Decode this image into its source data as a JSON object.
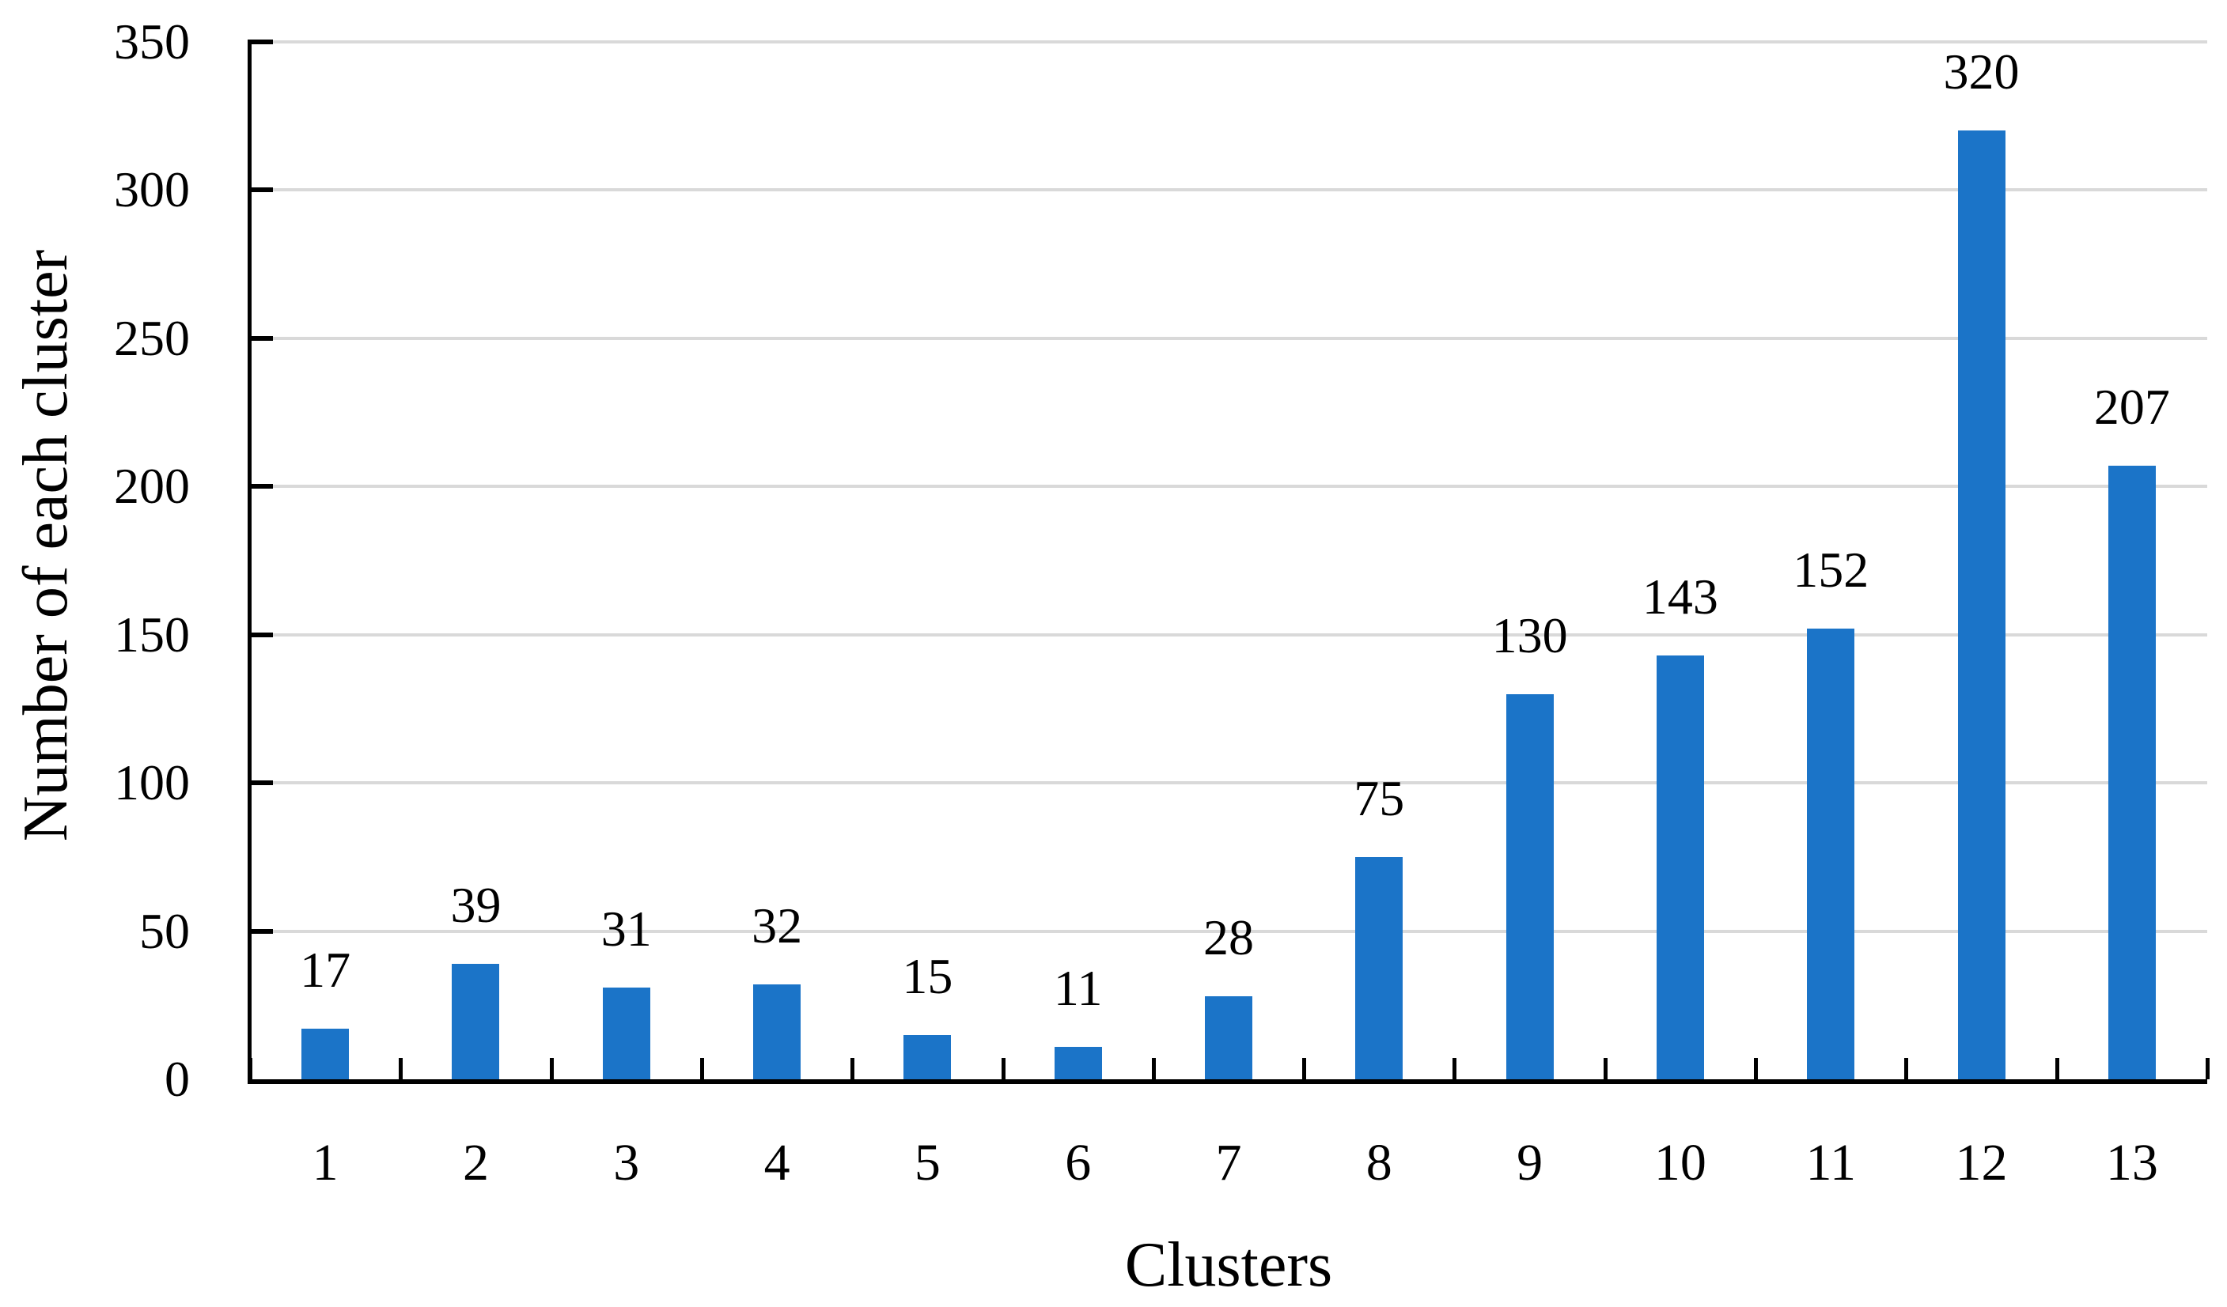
{
  "chart_data": {
    "type": "bar",
    "title": "",
    "xlabel": "Clusters",
    "ylabel": "Number of each cluster",
    "categories": [
      "1",
      "2",
      "3",
      "4",
      "5",
      "6",
      "7",
      "8",
      "9",
      "10",
      "11",
      "12",
      "13"
    ],
    "values": [
      17,
      39,
      31,
      32,
      15,
      11,
      28,
      75,
      130,
      143,
      152,
      320,
      207
    ],
    "data_labels": [
      "17",
      "39",
      "31",
      "32",
      "15",
      "11",
      "28",
      "75",
      "130",
      "143",
      "152",
      "320",
      "207"
    ],
    "ylim": [
      0,
      350
    ],
    "yticks": [
      0,
      50,
      100,
      150,
      200,
      250,
      300,
      350
    ],
    "grid": "horizontal-major",
    "legend": "none",
    "bar_color": "#1B74C8",
    "gridline_color": "#D9D9D9",
    "axis_color": "#000000",
    "text_color": "#000000",
    "background_color": "#FFFFFF"
  }
}
